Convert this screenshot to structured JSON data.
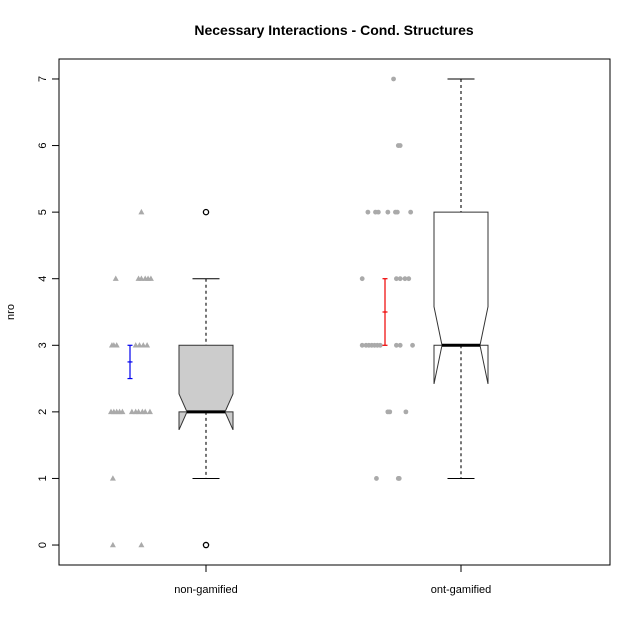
{
  "chart_data": {
    "type": "box",
    "title": "Necessary Interactions - Cond. Structures",
    "xlabel": "",
    "ylabel": "nro",
    "categories": [
      "non-gamified",
      "ont-gamified"
    ],
    "ylim": [
      -0.3,
      7.3
    ],
    "yticks": [
      0,
      1,
      2,
      3,
      4,
      5,
      6,
      7
    ],
    "grid": false,
    "boxes": [
      {
        "name": "non-gamified",
        "fill": "#cccccc",
        "q1": 2,
        "median": 2,
        "q3": 3,
        "whisker_low": 1,
        "whisker_high": 4,
        "notch_low": 1.73,
        "notch_high": 2.27,
        "outliers": [
          0,
          5
        ],
        "mean_ci": {
          "low": 2.5,
          "high": 3.0,
          "color": "#0000ee"
        },
        "points_marker": "triangle",
        "points": [
          {
            "x": -0.98,
            "y": 0
          },
          {
            "x": -0.68,
            "y": 0
          },
          {
            "x": -0.98,
            "y": 1
          },
          {
            "x": -1.0,
            "y": 2
          },
          {
            "x": -0.97,
            "y": 2
          },
          {
            "x": -0.94,
            "y": 2
          },
          {
            "x": -0.91,
            "y": 2
          },
          {
            "x": -0.88,
            "y": 2
          },
          {
            "x": -0.78,
            "y": 2
          },
          {
            "x": -0.74,
            "y": 2
          },
          {
            "x": -0.71,
            "y": 2
          },
          {
            "x": -0.67,
            "y": 2
          },
          {
            "x": -0.64,
            "y": 2
          },
          {
            "x": -0.59,
            "y": 2
          },
          {
            "x": -0.99,
            "y": 3
          },
          {
            "x": -0.97,
            "y": 3
          },
          {
            "x": -0.94,
            "y": 3
          },
          {
            "x": -0.74,
            "y": 3
          },
          {
            "x": -0.7,
            "y": 3
          },
          {
            "x": -0.66,
            "y": 3
          },
          {
            "x": -0.62,
            "y": 3
          },
          {
            "x": -0.95,
            "y": 4
          },
          {
            "x": -0.71,
            "y": 4
          },
          {
            "x": -0.68,
            "y": 4
          },
          {
            "x": -0.64,
            "y": 4
          },
          {
            "x": -0.61,
            "y": 4
          },
          {
            "x": -0.58,
            "y": 4
          },
          {
            "x": -0.68,
            "y": 5
          }
        ]
      },
      {
        "name": "ont-gamified",
        "fill": "#ffffff",
        "q1": 3,
        "median": 3,
        "q3": 5,
        "whisker_low": 1,
        "whisker_high": 7,
        "notch_low": 2.42,
        "notch_high": 3.58,
        "outliers": [],
        "mean_ci": {
          "low": 3.0,
          "high": 4.0,
          "color": "#ee0000"
        },
        "points_marker": "circle",
        "points": [
          {
            "x": -0.89,
            "y": 1
          },
          {
            "x": -0.65,
            "y": 1
          },
          {
            "x": -0.66,
            "y": 1
          },
          {
            "x": -0.77,
            "y": 2
          },
          {
            "x": -0.75,
            "y": 2
          },
          {
            "x": -0.58,
            "y": 2
          },
          {
            "x": -1.04,
            "y": 3
          },
          {
            "x": -1.0,
            "y": 3
          },
          {
            "x": -0.97,
            "y": 3
          },
          {
            "x": -0.94,
            "y": 3
          },
          {
            "x": -0.91,
            "y": 3
          },
          {
            "x": -0.88,
            "y": 3
          },
          {
            "x": -0.85,
            "y": 3
          },
          {
            "x": -0.68,
            "y": 3
          },
          {
            "x": -0.64,
            "y": 3
          },
          {
            "x": -0.51,
            "y": 3
          },
          {
            "x": -1.04,
            "y": 4
          },
          {
            "x": -0.68,
            "y": 4
          },
          {
            "x": -0.64,
            "y": 4
          },
          {
            "x": -0.59,
            "y": 4
          },
          {
            "x": -0.55,
            "y": 4
          },
          {
            "x": -0.98,
            "y": 5
          },
          {
            "x": -0.9,
            "y": 5
          },
          {
            "x": -0.87,
            "y": 5
          },
          {
            "x": -0.77,
            "y": 5
          },
          {
            "x": -0.69,
            "y": 5
          },
          {
            "x": -0.67,
            "y": 5
          },
          {
            "x": -0.53,
            "y": 5
          },
          {
            "x": -0.66,
            "y": 6
          },
          {
            "x": -0.64,
            "y": 6
          },
          {
            "x": -0.71,
            "y": 7
          }
        ]
      }
    ],
    "colors": {
      "points": "#aaaaaa",
      "box_border": "#333333",
      "whisker": "#555555"
    }
  }
}
